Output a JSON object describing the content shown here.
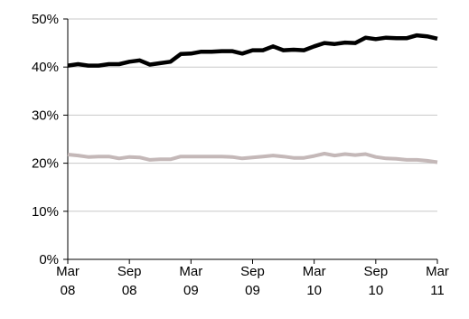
{
  "chart_data": {
    "type": "line",
    "title": "",
    "xlabel": "",
    "ylabel": "",
    "ylim": [
      0,
      50
    ],
    "y_ticks": [
      0,
      10,
      20,
      30,
      40,
      50
    ],
    "y_tick_labels": [
      "0%",
      "10%",
      "20%",
      "30%",
      "40%",
      "50%"
    ],
    "x_ticks": [
      {
        "month_index": 0,
        "label_top": "Mar",
        "label_bottom": "08"
      },
      {
        "month_index": 6,
        "label_top": "Sep",
        "label_bottom": "08"
      },
      {
        "month_index": 12,
        "label_top": "Mar",
        "label_bottom": "09"
      },
      {
        "month_index": 18,
        "label_top": "Sep",
        "label_bottom": "09"
      },
      {
        "month_index": 24,
        "label_top": "Mar",
        "label_bottom": "10"
      },
      {
        "month_index": 30,
        "label_top": "Sep",
        "label_bottom": "10"
      },
      {
        "month_index": 36,
        "label_top": "Mar",
        "label_bottom": "11"
      }
    ],
    "grid": "horizontal",
    "legend": "none",
    "x": [
      "Mar 08",
      "Apr 08",
      "May 08",
      "Jun 08",
      "Jul 08",
      "Aug 08",
      "Sep 08",
      "Oct 08",
      "Nov 08",
      "Dec 08",
      "Jan 09",
      "Feb 09",
      "Mar 09",
      "Apr 09",
      "May 09",
      "Jun 09",
      "Jul 09",
      "Aug 09",
      "Sep 09",
      "Oct 09",
      "Nov 09",
      "Dec 09",
      "Jan 10",
      "Feb 10",
      "Mar 10",
      "Apr 10",
      "May 10",
      "Jun 10",
      "Jul 10",
      "Aug 10",
      "Sep 10",
      "Oct 10",
      "Nov 10",
      "Dec 10",
      "Jan 11",
      "Feb 11",
      "Mar 11"
    ],
    "series": [
      {
        "color": "#000000",
        "values": [
          40.3,
          40.6,
          40.3,
          40.3,
          40.6,
          40.6,
          41.1,
          41.4,
          40.5,
          40.8,
          41.1,
          42.7,
          42.8,
          43.2,
          43.2,
          43.3,
          43.3,
          42.8,
          43.5,
          43.5,
          44.3,
          43.5,
          43.6,
          43.5,
          44.3,
          45.0,
          44.8,
          45.1,
          45.0,
          46.1,
          45.8,
          46.1,
          46.0,
          46.0,
          46.6,
          46.4,
          45.9
        ]
      },
      {
        "color": "#c4b8b8",
        "values": [
          21.8,
          21.6,
          21.3,
          21.4,
          21.4,
          21.0,
          21.3,
          21.2,
          20.7,
          20.8,
          20.8,
          21.4,
          21.4,
          21.4,
          21.4,
          21.4,
          21.3,
          21.0,
          21.2,
          21.4,
          21.6,
          21.4,
          21.1,
          21.1,
          21.5,
          22.0,
          21.6,
          21.9,
          21.7,
          21.9,
          21.3,
          21.0,
          20.9,
          20.7,
          20.7,
          20.5,
          20.2
        ]
      }
    ]
  }
}
